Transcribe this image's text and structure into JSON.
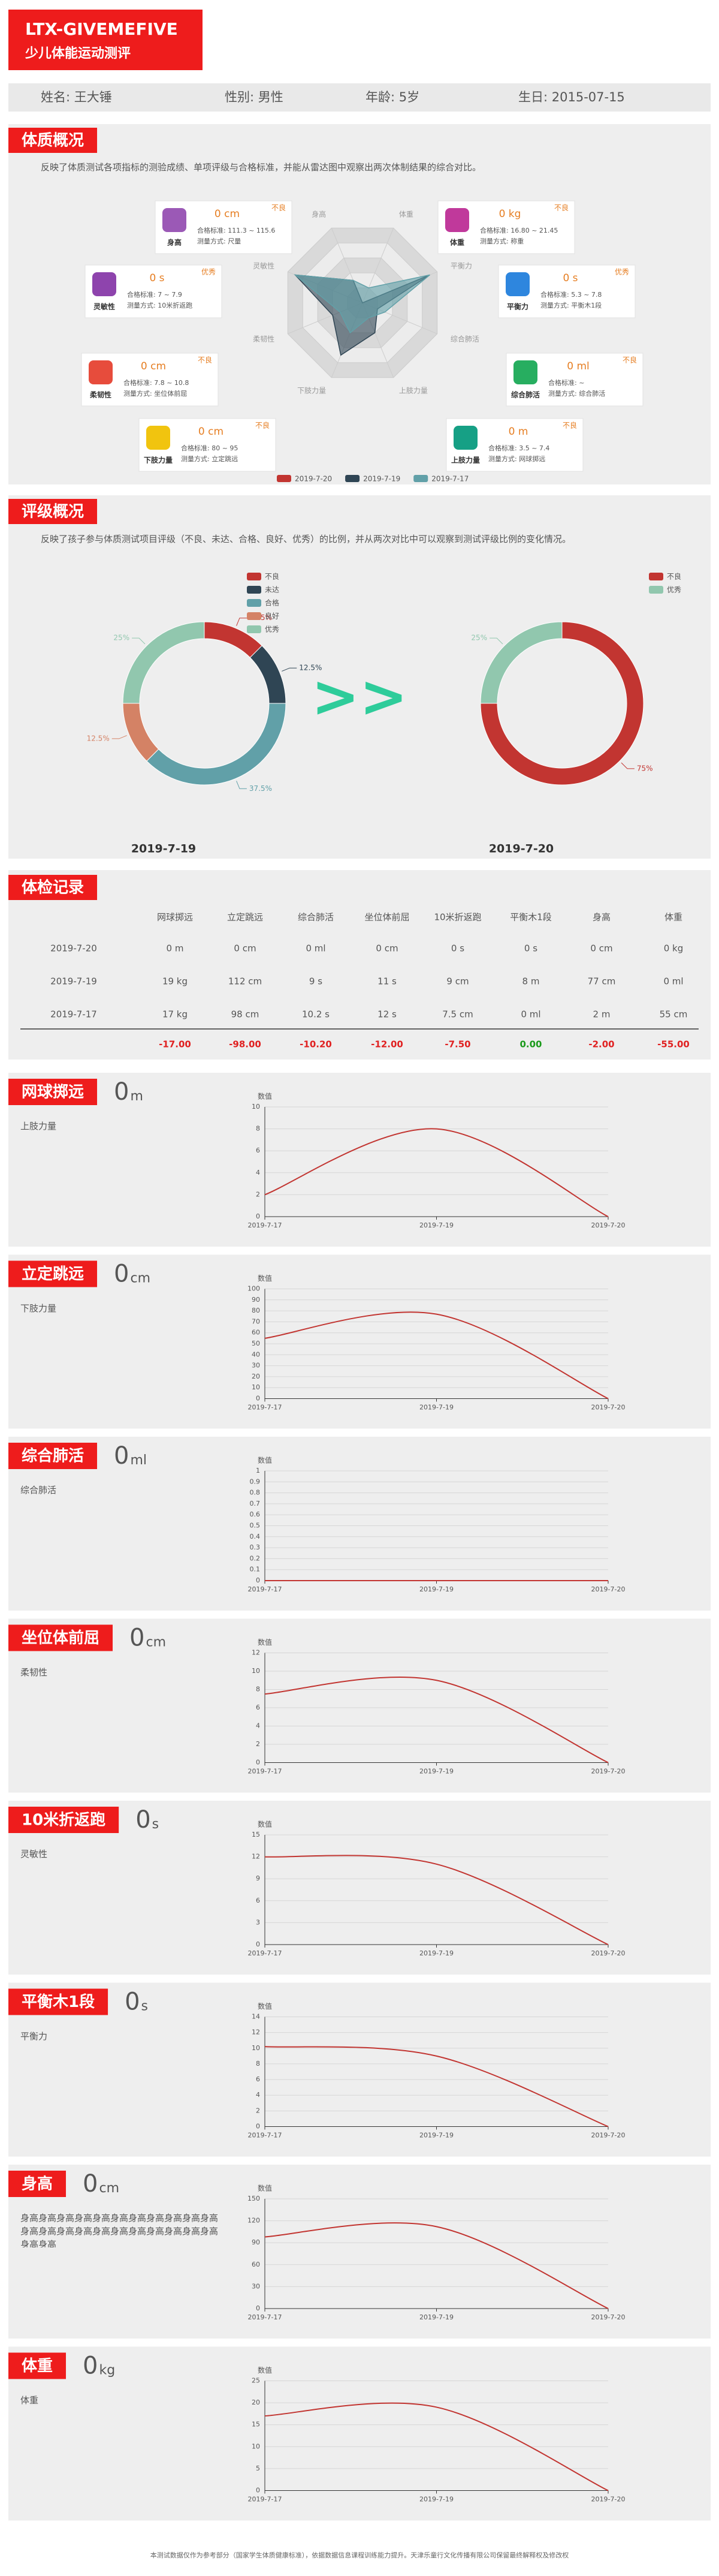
{
  "header": {
    "title": "LTX-GIVEMEFIVE",
    "subtitle": "少儿体能运动测评"
  },
  "info": [
    "姓名: 王大锤",
    "性别: 男性",
    "年龄: 5岁",
    "生日: 2015-07-15"
  ],
  "profile": {
    "title": "体质概况",
    "description": "反映了体质测试各项指标的测验成绩、单项评级与合格标准，并能从雷达图中观察出两次体制结果的综合对比。",
    "cards": [
      {
        "label": "身高",
        "value": "0 cm",
        "standard": "合格标准: 111.3 ~ 115.6",
        "method": "测量方式: 尺量",
        "grade": "不良"
      },
      {
        "label": "体重",
        "value": "0 kg",
        "standard": "合格标准: 16.80 ~ 21.45",
        "method": "测量方式: 称重",
        "grade": "不良"
      },
      {
        "label": "灵敏性",
        "value": "0 s",
        "standard": "合格标准: 7 ~ 7.9",
        "method": "测量方式: 10米折返跑",
        "grade": "优秀"
      },
      {
        "label": "平衡力",
        "value": "0 s",
        "standard": "合格标准: 5.3 ~ 7.8",
        "method": "测量方式: 平衡木1段",
        "grade": "优秀"
      },
      {
        "label": "柔韧性",
        "value": "0 cm",
        "standard": "合格标准: 7.8 ~ 10.8",
        "method": "测量方式: 坐位体前屈",
        "grade": "不良"
      },
      {
        "label": "综合肺活",
        "value": "0 ml",
        "standard": "合格标准: ~",
        "method": "测量方式: 综合肺活",
        "grade": "不良"
      },
      {
        "label": "下肢力量",
        "value": "0 cm",
        "standard": "合格标准: 80 ~ 95",
        "method": "测量方式: 立定跳远",
        "grade": "不良"
      },
      {
        "label": "上肢力量",
        "value": "0 m",
        "standard": "合格标准: 3.5 ~ 7.4",
        "method": "测量方式: 网球掷远",
        "grade": "不良"
      }
    ]
  },
  "rating": {
    "title": "评级概况",
    "description": "反映了孩子参与体质测试项目评级（不良、未达、合格、良好、优秀）的比例，并从两次对比中可以观察到测试评级比例的变化情况。",
    "arrow": ">>"
  },
  "records": {
    "title": "体检记录",
    "columns": [
      "网球掷远",
      "立定跳远",
      "综合肺活",
      "坐位体前屈",
      "10米折返跑",
      "平衡木1段",
      "身高",
      "体重"
    ],
    "rows": [
      {
        "date": "2019-7-20",
        "cells": [
          "0 m",
          "0 cm",
          "0 ml",
          "0 cm",
          "0 s",
          "0 s",
          "0 cm",
          "0 kg"
        ]
      },
      {
        "date": "2019-7-19",
        "cells": [
          "19 kg",
          "112 cm",
          "9 s",
          "11 s",
          "9 cm",
          "8 m",
          "77 cm",
          "0 ml"
        ]
      },
      {
        "date": "2019-7-17",
        "cells": [
          "17 kg",
          "98 cm",
          "10.2 s",
          "12 s",
          "7.5 cm",
          "0 ml",
          "2 m",
          "55 cm"
        ]
      }
    ],
    "diff": [
      "-17.00",
      "-98.00",
      "-10.20",
      "-12.00",
      "-7.50",
      "0.00",
      "-2.00",
      "-55.00"
    ]
  },
  "items": [
    {
      "title": "网球掷远",
      "value": "0",
      "unit": "m",
      "description": "上肢力量"
    },
    {
      "title": "立定跳远",
      "value": "0",
      "unit": "cm",
      "description": "下肢力量"
    },
    {
      "title": "综合肺活",
      "value": "0",
      "unit": "ml",
      "description": "综合肺活"
    },
    {
      "title": "坐位体前屈",
      "value": "0",
      "unit": "cm",
      "description": "柔韧性"
    },
    {
      "title": "10米折返跑",
      "value": "0",
      "unit": "s",
      "description": "灵敏性"
    },
    {
      "title": "平衡木1段",
      "value": "0",
      "unit": "s",
      "description": "平衡力"
    },
    {
      "title": "身高",
      "value": "0",
      "unit": "cm",
      "description": "身高身高身高身高身高身高身高身高身高身高身高身高身高身高身高身高身高身高身高身高身高身高身高身高"
    },
    {
      "title": "体重",
      "value": "0",
      "unit": "kg",
      "description": "体重"
    }
  ],
  "footer": "本测试数据仅作为参考部分（国家学生体质健康标准），依据数据信息课程训练能力提升。天津乐童行文化传播有限公司保留最终解释权及修改权",
  "chart_data": [
    {
      "type": "radar",
      "indicators": [
        "身高",
        "体重",
        "平衡力",
        "综合肺活",
        "上肢力量",
        "下肢力量",
        "柔韧性",
        "灵敏性"
      ],
      "rlim": [
        0,
        100
      ],
      "series": [
        {
          "name": "2019-7-20",
          "color": "#c23531",
          "values": [
            0,
            0,
            0,
            0,
            0,
            0,
            0,
            0
          ]
        },
        {
          "name": "2019-7-19",
          "color": "#2f4554",
          "values": [
            30,
            0,
            90,
            20,
            40,
            70,
            40,
            90
          ]
        },
        {
          "name": "2019-7-17",
          "color": "#61a0a8",
          "values": [
            30,
            20,
            90,
            30,
            20,
            40,
            30,
            90
          ]
        }
      ]
    },
    {
      "type": "pie",
      "title": "2019-7-19",
      "categories": [
        "不良",
        "未达",
        "合格",
        "良好",
        "优秀"
      ],
      "values": [
        12.5,
        12.5,
        37.5,
        12.5,
        25
      ],
      "value_labels": [
        "12.5%",
        "12.5%",
        "37.5%",
        "12.5%",
        "25%"
      ],
      "colors": [
        "#c23531",
        "#2f4554",
        "#61a0a8",
        "#d48265",
        "#91c7ae"
      ]
    },
    {
      "type": "pie",
      "title": "2019-7-20",
      "categories": [
        "不良",
        "优秀"
      ],
      "values": [
        75,
        25
      ],
      "value_labels": [
        "75%",
        "25%"
      ],
      "colors": [
        "#c23531",
        "#91c7ae"
      ]
    },
    {
      "type": "line",
      "y_label": "数值",
      "categories": [
        "2019-7-17",
        "2019-7-19",
        "2019-7-20"
      ],
      "values": [
        2,
        8,
        0
      ],
      "color": "#c23531",
      "ylim": [
        0,
        10
      ],
      "yticks": [
        0,
        2,
        4,
        6,
        8,
        10
      ]
    },
    {
      "type": "line",
      "y_label": "数值",
      "categories": [
        "2019-7-17",
        "2019-7-19",
        "2019-7-20"
      ],
      "values": [
        55,
        77,
        0
      ],
      "color": "#c23531",
      "ylim": [
        0,
        100
      ],
      "yticks": [
        0,
        10,
        20,
        30,
        40,
        50,
        60,
        70,
        80,
        90,
        100
      ]
    },
    {
      "type": "line",
      "y_label": "数值",
      "categories": [
        "2019-7-17",
        "2019-7-19",
        "2019-7-20"
      ],
      "values": [
        0,
        0,
        0
      ],
      "color": "#c23531",
      "ylim": [
        0,
        1
      ],
      "yticks": [
        0,
        0.1,
        0.2,
        0.3,
        0.4,
        0.5,
        0.6,
        0.7,
        0.8,
        0.9,
        1
      ]
    },
    {
      "type": "line",
      "y_label": "数值",
      "categories": [
        "2019-7-17",
        "2019-7-19",
        "2019-7-20"
      ],
      "values": [
        7.5,
        9,
        0
      ],
      "color": "#c23531",
      "ylim": [
        0,
        12
      ],
      "yticks": [
        0,
        2,
        4,
        6,
        8,
        10,
        12
      ]
    },
    {
      "type": "line",
      "y_label": "数值",
      "categories": [
        "2019-7-17",
        "2019-7-19",
        "2019-7-20"
      ],
      "values": [
        12,
        11,
        0
      ],
      "color": "#c23531",
      "ylim": [
        0,
        15
      ],
      "yticks": [
        0,
        3,
        6,
        9,
        12,
        15
      ]
    },
    {
      "type": "line",
      "y_label": "数值",
      "categories": [
        "2019-7-17",
        "2019-7-19",
        "2019-7-20"
      ],
      "values": [
        10.2,
        9,
        0
      ],
      "color": "#c23531",
      "ylim": [
        0,
        14
      ],
      "yticks": [
        0,
        2,
        4,
        6,
        8,
        10,
        12,
        14
      ]
    },
    {
      "type": "line",
      "y_label": "数值",
      "categories": [
        "2019-7-17",
        "2019-7-19",
        "2019-7-20"
      ],
      "values": [
        98,
        112,
        0
      ],
      "color": "#c23531",
      "ylim": [
        0,
        150
      ],
      "yticks": [
        0,
        30,
        60,
        90,
        120,
        150
      ]
    },
    {
      "type": "line",
      "y_label": "数值",
      "categories": [
        "2019-7-17",
        "2019-7-19",
        "2019-7-20"
      ],
      "values": [
        17,
        19,
        0
      ],
      "color": "#c23531",
      "ylim": [
        0,
        25
      ],
      "yticks": [
        0,
        5,
        10,
        15,
        20,
        25
      ]
    }
  ]
}
